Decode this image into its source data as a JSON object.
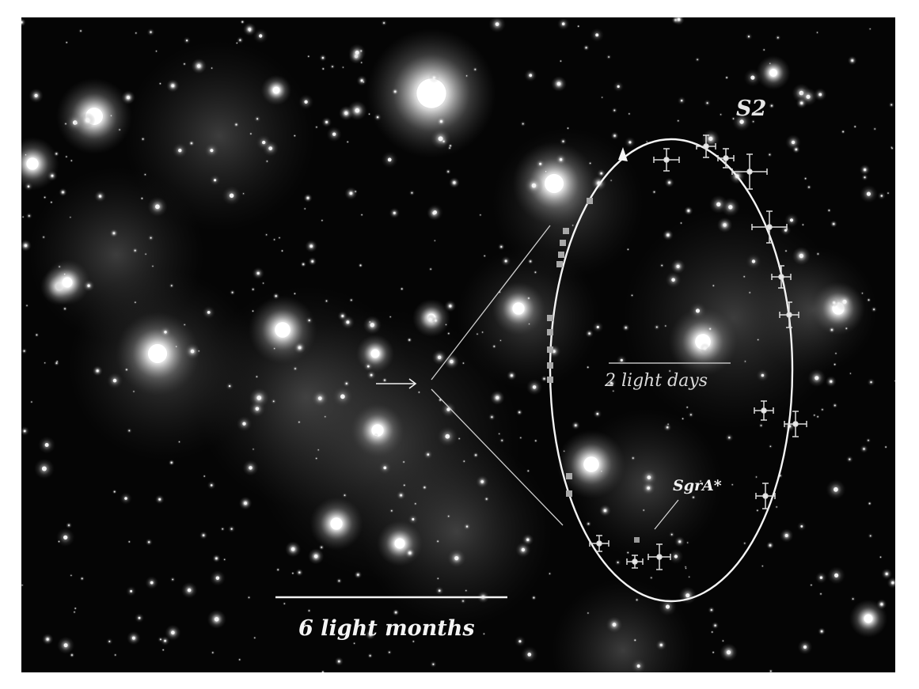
{
  "figure": {
    "star_label": "S2",
    "scale_inset_label": "2 light days",
    "scale_main_label": "6 light months",
    "black_hole_label": "SgrA*"
  },
  "colors": {
    "background": "#000000",
    "stars": "#ffffff",
    "annotations": "#f2f2f2",
    "data_points": "#d8d8d8"
  }
}
